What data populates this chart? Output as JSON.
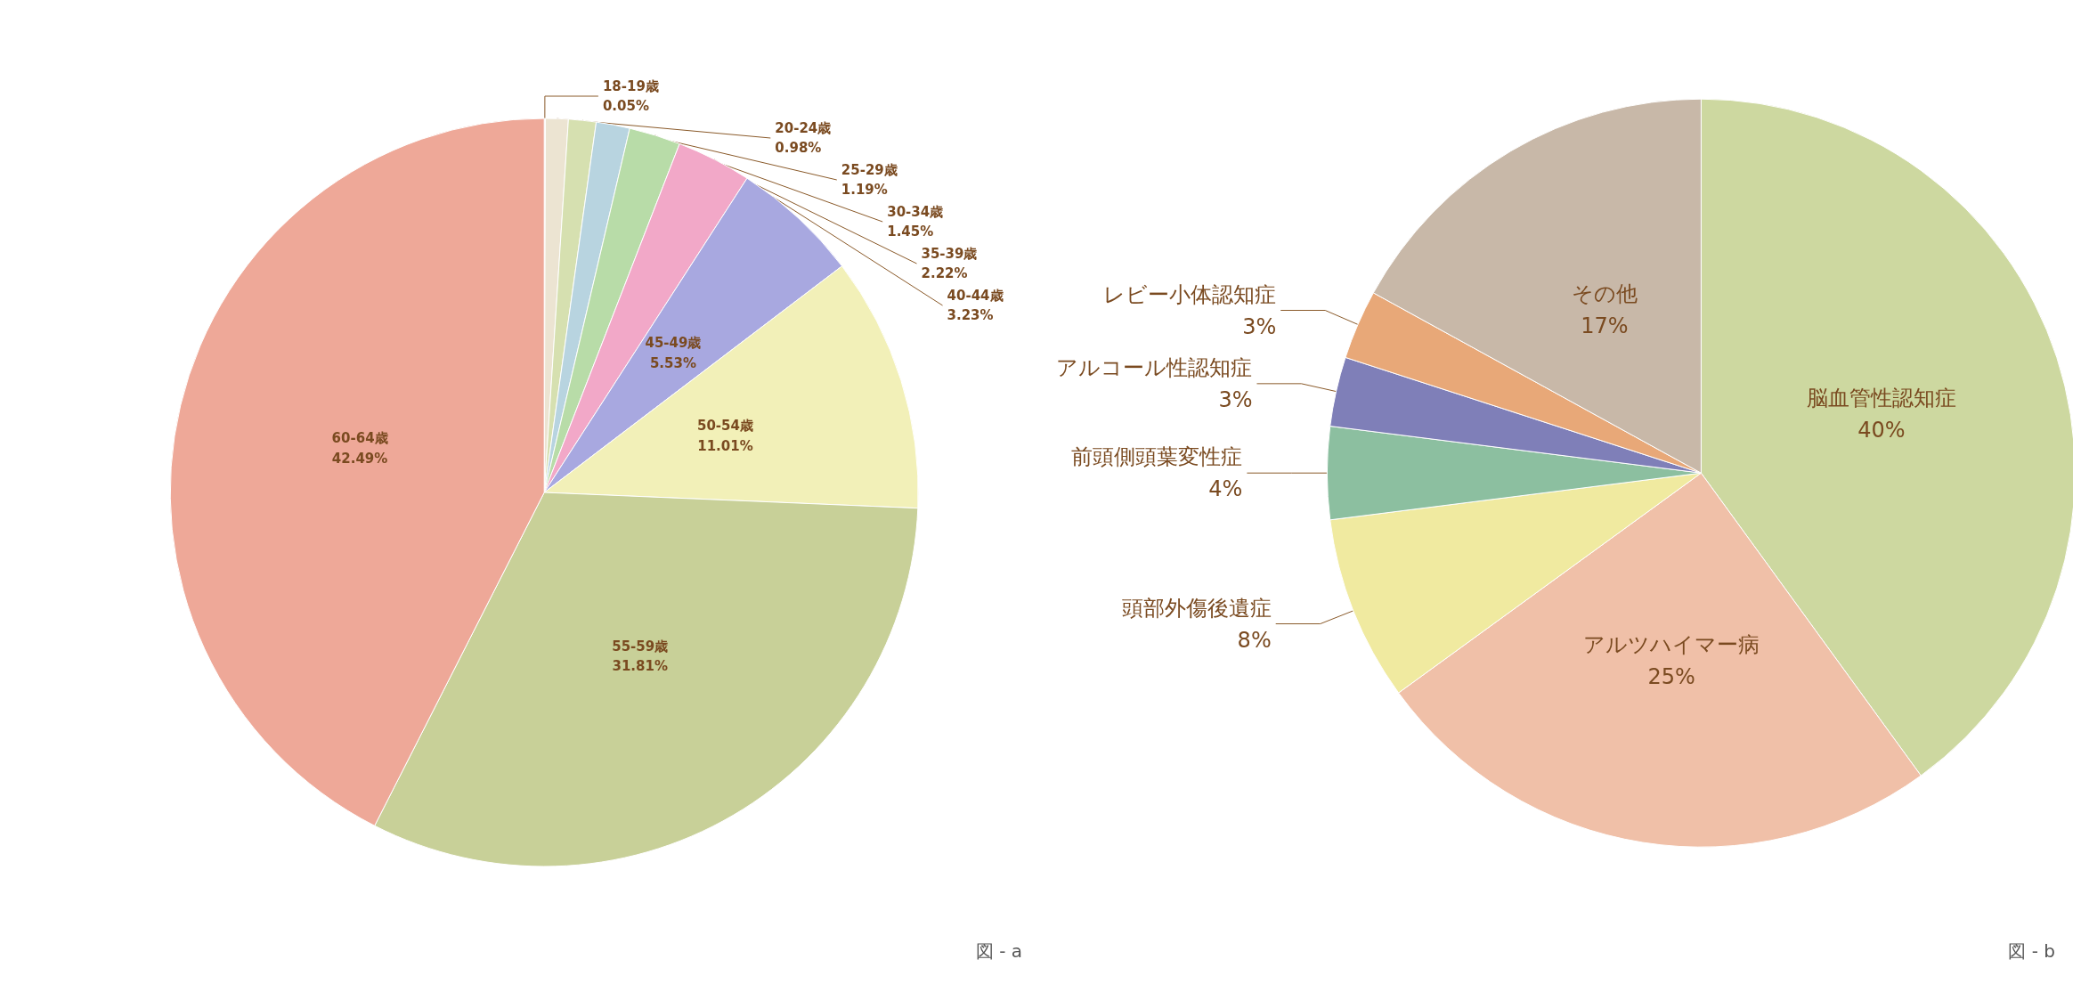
{
  "chart_data": [
    {
      "type": "pie",
      "categories": [
        "18-19歳",
        "20-24歳",
        "25-29歳",
        "30-34歳",
        "35-39歳",
        "40-44歳",
        "45-49歳",
        "50-54歳",
        "55-59歳",
        "60-64歳"
      ],
      "values": [
        0.05,
        0.98,
        1.19,
        1.45,
        2.22,
        3.23,
        5.53,
        11.01,
        31.81,
        42.49
      ],
      "value_labels": [
        "0.05%",
        "0.98%",
        "1.19%",
        "1.45%",
        "2.22%",
        "3.23%",
        "5.53%",
        "11.01%",
        "31.81%",
        "42.49%"
      ],
      "colors": [
        "#d8cfc0",
        "#ece4d2",
        "#d6e0b0",
        "#b8d4e0",
        "#b8dca8",
        "#f2a8c8",
        "#a8a8e0",
        "#f2f0b8",
        "#c8d098",
        "#eea898"
      ],
      "annotations": [
        "図 - a"
      ]
    },
    {
      "type": "pie",
      "categories": [
        "脳血管性認知症",
        "アルツハイマー病",
        "頭部外傷後遺症",
        "前頭側頭葉変性症",
        "アルコール性認知症",
        "レビー小体認知症",
        "その他"
      ],
      "values": [
        40,
        25,
        8,
        4,
        3,
        3,
        17
      ],
      "value_labels": [
        "40%",
        "25%",
        "8%",
        "4%",
        "3%",
        "3%",
        "17%"
      ],
      "colors": [
        "#cdd8a0",
        "#f0c0a8",
        "#f0eaa0",
        "#8cbfa0",
        "#7f7fb8",
        "#e8a878",
        "#c8b8a8"
      ],
      "annotations": [
        "図 - b"
      ]
    }
  ]
}
